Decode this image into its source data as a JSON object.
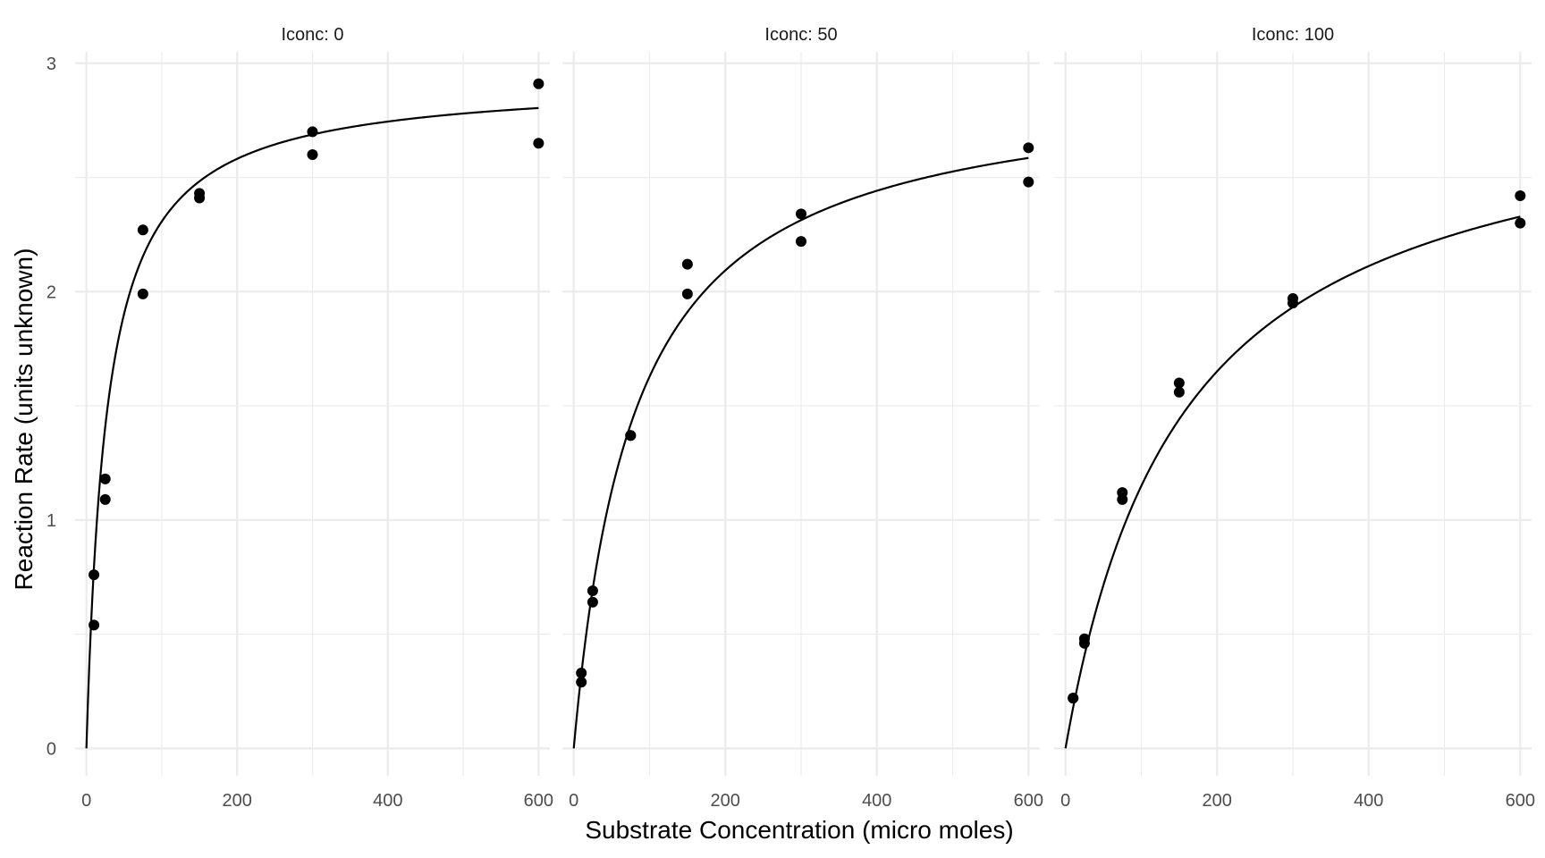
{
  "chart_data": {
    "type": "scatter",
    "xlabel": "Substrate Concentration (micro moles)",
    "ylabel": "Reaction Rate (units unknown)",
    "xlim": [
      -15,
      615
    ],
    "ylim": [
      -0.12,
      3.05
    ],
    "x_ticks": [
      0,
      200,
      400,
      600
    ],
    "y_ticks": [
      0,
      1,
      2,
      3
    ],
    "grid": true,
    "facets": [
      {
        "label": "Iconc: 0",
        "points": [
          {
            "x": 10,
            "y": 0.54
          },
          {
            "x": 10,
            "y": 0.76
          },
          {
            "x": 25,
            "y": 1.09
          },
          {
            "x": 25,
            "y": 1.18
          },
          {
            "x": 75,
            "y": 1.99
          },
          {
            "x": 75,
            "y": 2.27
          },
          {
            "x": 150,
            "y": 2.41
          },
          {
            "x": 150,
            "y": 2.43
          },
          {
            "x": 300,
            "y": 2.6
          },
          {
            "x": 300,
            "y": 2.7
          },
          {
            "x": 600,
            "y": 2.65
          },
          {
            "x": 600,
            "y": 2.91
          }
        ],
        "fit": {
          "vmax": 2.93,
          "km": 27
        }
      },
      {
        "label": "Iconc: 50",
        "points": [
          {
            "x": 10,
            "y": 0.29
          },
          {
            "x": 10,
            "y": 0.33
          },
          {
            "x": 25,
            "y": 0.64
          },
          {
            "x": 25,
            "y": 0.69
          },
          {
            "x": 75,
            "y": 1.37
          },
          {
            "x": 75,
            "y": 1.37
          },
          {
            "x": 150,
            "y": 1.99
          },
          {
            "x": 150,
            "y": 2.12
          },
          {
            "x": 300,
            "y": 2.22
          },
          {
            "x": 300,
            "y": 2.34
          },
          {
            "x": 600,
            "y": 2.48
          },
          {
            "x": 600,
            "y": 2.63
          }
        ],
        "fit": {
          "vmax": 2.93,
          "km": 80
        }
      },
      {
        "label": "Iconc: 100",
        "points": [
          {
            "x": 10,
            "y": 0.22
          },
          {
            "x": 10,
            "y": 0.22
          },
          {
            "x": 25,
            "y": 0.46
          },
          {
            "x": 25,
            "y": 0.48
          },
          {
            "x": 75,
            "y": 1.09
          },
          {
            "x": 75,
            "y": 1.12
          },
          {
            "x": 150,
            "y": 1.56
          },
          {
            "x": 150,
            "y": 1.6
          },
          {
            "x": 300,
            "y": 1.95
          },
          {
            "x": 300,
            "y": 1.97
          },
          {
            "x": 600,
            "y": 2.3
          },
          {
            "x": 600,
            "y": 2.42
          }
        ],
        "fit": {
          "vmax": 2.93,
          "km": 155
        }
      }
    ]
  }
}
